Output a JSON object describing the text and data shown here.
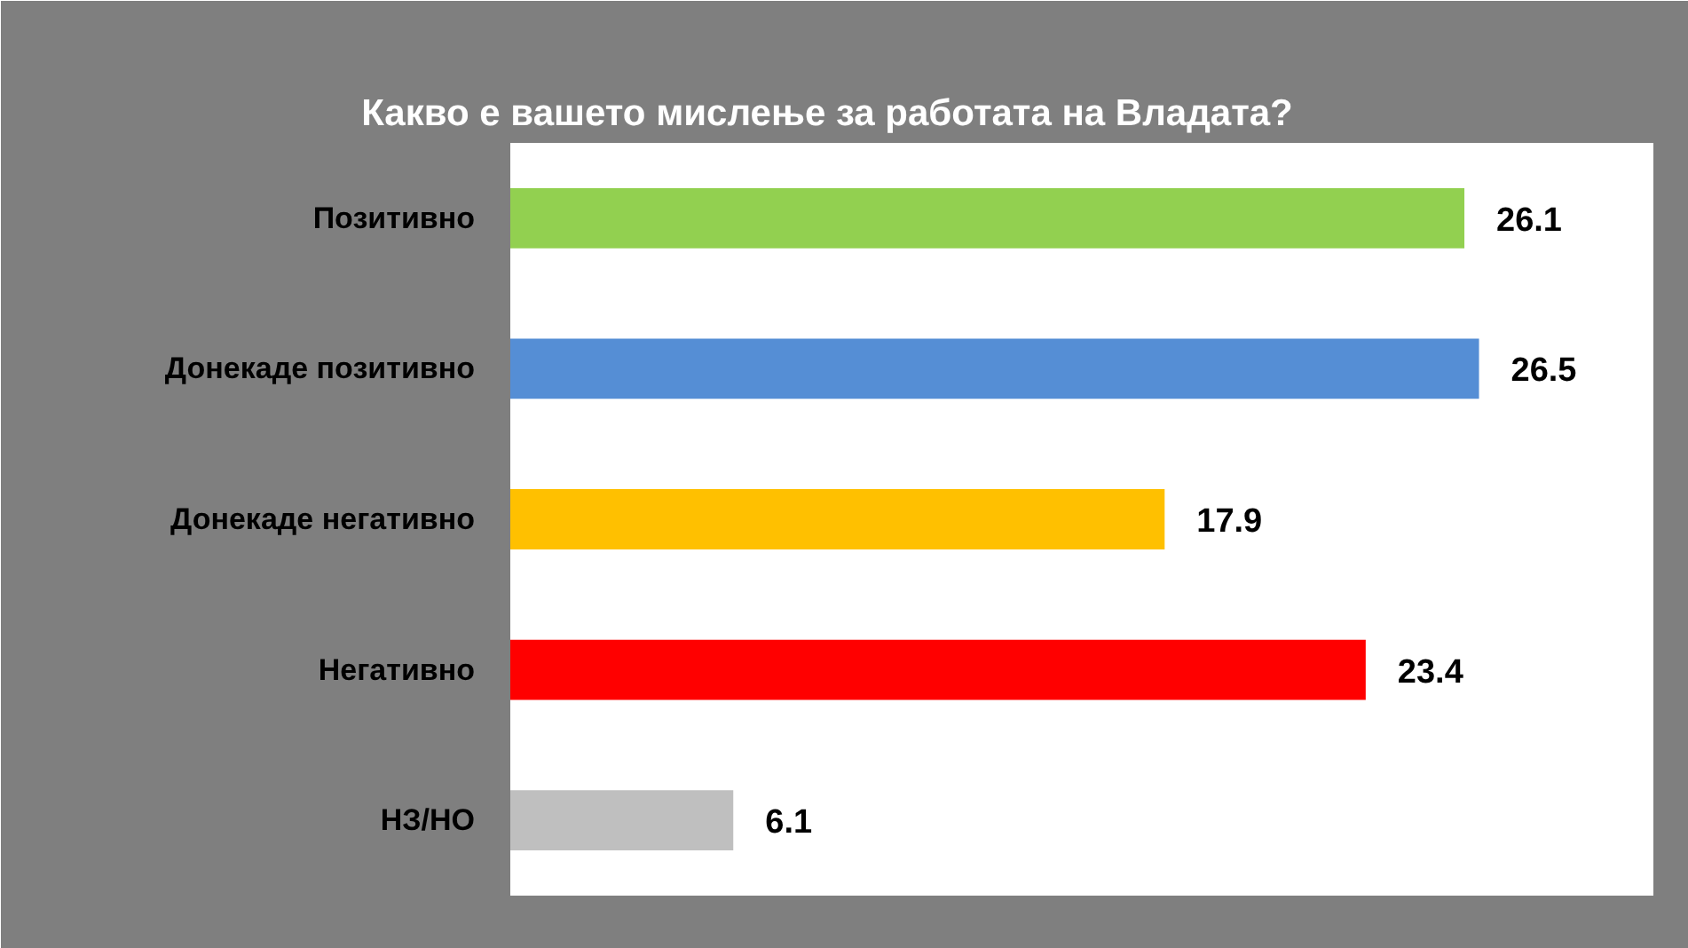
{
  "chart_data": {
    "type": "bar",
    "orientation": "horizontal",
    "title": "Какво е вашето мислење за работата на Владата?",
    "categories": [
      "Позитивно",
      "Донекаде позитивно",
      "Донекаде негативно",
      "Негативно",
      "НЗ/НО"
    ],
    "values": [
      26.1,
      26.5,
      17.9,
      23.4,
      6.1
    ],
    "colors": [
      "#92d050",
      "#558ed5",
      "#ffc000",
      "#ff0000",
      "#bfbfbf"
    ],
    "data_labels": true,
    "grid": false
  }
}
